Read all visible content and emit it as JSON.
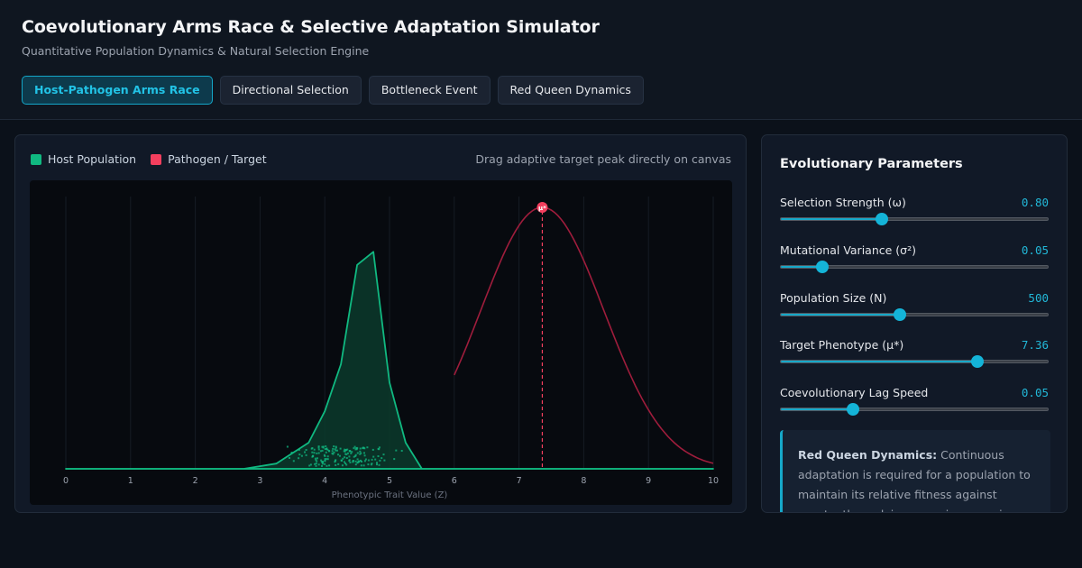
{
  "header": {
    "title": "Coevolutionary Arms Race & Selective Adaptation Simulator",
    "subtitle": "Quantitative Population Dynamics & Natural Selection Engine"
  },
  "tabs": [
    {
      "label": "Host-Pathogen Arms Race",
      "active": true
    },
    {
      "label": "Directional Selection",
      "active": false
    },
    {
      "label": "Bottleneck Event",
      "active": false
    },
    {
      "label": "Red Queen Dynamics",
      "active": false
    }
  ],
  "chart": {
    "legend": [
      {
        "label": "Host Population",
        "color": "#10b981"
      },
      {
        "label": "Pathogen / Target",
        "color": "#f43f5e"
      }
    ],
    "hint": "Drag adaptive target peak directly on canvas",
    "peak_label": "μ*",
    "x_label": "Phenotypic Trait Value (Z)",
    "colors": {
      "host": "#10b981",
      "pathogen": "#9f1d3c",
      "marker": "#f43f5e"
    }
  },
  "chart_data": {
    "type": "area",
    "x_ticks": [
      "0",
      "1",
      "2",
      "3",
      "4",
      "5",
      "6",
      "7",
      "8",
      "9",
      "10"
    ],
    "xlim": [
      0,
      10
    ],
    "xlabel": "Phenotypic Trait Value (Z)",
    "series": [
      {
        "name": "Host Population",
        "x": [
          0,
          2.75,
          3.25,
          3.75,
          4.0,
          4.25,
          4.5,
          4.75,
          5.0,
          5.25,
          5.5,
          10
        ],
        "y": [
          0,
          0,
          0.02,
          0.1,
          0.22,
          0.4,
          0.78,
          0.83,
          0.33,
          0.1,
          0,
          0
        ]
      },
      {
        "name": "Pathogen / Target",
        "distribution": "gaussian",
        "mean": 7.36,
        "sd": 0.95,
        "peak": 1.0,
        "x_range": [
          6,
          10
        ]
      }
    ],
    "target_marker": 7.36
  },
  "params": {
    "title": "Evolutionary Parameters",
    "items": [
      {
        "label": "Selection Strength (ω)",
        "value": "0.80",
        "level": 0.38
      },
      {
        "label": "Mutational Variance (σ²)",
        "value": "0.05",
        "level": 0.155
      },
      {
        "label": "Population Size (N)",
        "value": "500",
        "level": 0.445
      },
      {
        "label": "Target Phenotype (μ*)",
        "value": "7.36",
        "level": 0.735
      },
      {
        "label": "Coevolutionary Lag Speed",
        "value": "0.05",
        "level": 0.27
      }
    ]
  },
  "info": {
    "heading": "Red Queen Dynamics:",
    "text": "Continuous adaptation is required for a population to maintain its relative fitness against constantly evolving opposing organisms."
  }
}
